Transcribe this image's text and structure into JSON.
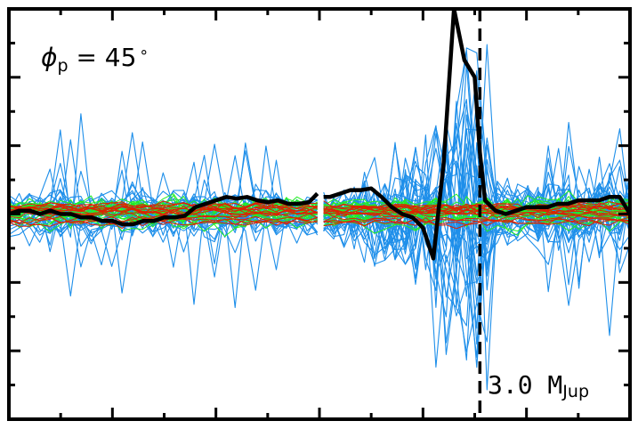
{
  "chart_data": {
    "type": "line",
    "title": "",
    "xlabel": "",
    "ylabel": "",
    "xlim": [
      0,
      60
    ],
    "ylim": [
      -6,
      6
    ],
    "grid": false,
    "legend": "none",
    "annotations": {
      "phi_symbol": "ϕ",
      "phi_sub": "p",
      "phi_eq": " = 45",
      "phi_deg": "∘",
      "mass_value": "3.0 M",
      "mass_sub": "Jup"
    },
    "vline_x": 45.5,
    "gap_x": [
      29.8,
      30.4
    ],
    "colors": {
      "blue": "#1e8fea",
      "green": "#22ee22",
      "red": "#dd2200",
      "mean": "#000000",
      "frame": "#000000"
    },
    "mean_series": {
      "name": "",
      "x": [
        0,
        1,
        2,
        3,
        4,
        5,
        6,
        7,
        8,
        9,
        10,
        11,
        12,
        13,
        14,
        15,
        16,
        17,
        18,
        19,
        20,
        21,
        22,
        23,
        24,
        25,
        26,
        27,
        28,
        29,
        29.8,
        30.4,
        31,
        32,
        33,
        34,
        35,
        36,
        37,
        38,
        39,
        40,
        41,
        42,
        43,
        44,
        45,
        45.5,
        46,
        47,
        48,
        49,
        50,
        51,
        52,
        53,
        54,
        55,
        56,
        57,
        58,
        59,
        60
      ],
      "y": [
        0.0,
        0.1,
        0.1,
        0.0,
        0.1,
        0.0,
        0.0,
        -0.1,
        -0.1,
        -0.2,
        -0.2,
        -0.3,
        -0.3,
        -0.2,
        -0.2,
        -0.1,
        -0.1,
        -0.05,
        0.2,
        0.3,
        0.4,
        0.5,
        0.45,
        0.5,
        0.4,
        0.35,
        0.4,
        0.3,
        0.3,
        0.35,
        0.6,
        0.5,
        0.5,
        0.6,
        0.7,
        0.7,
        0.75,
        0.5,
        0.2,
        0.0,
        -0.1,
        -0.4,
        -1.3,
        1.5,
        6.0,
        4.5,
        4.0,
        1.8,
        0.4,
        0.1,
        0.0,
        0.1,
        0.2,
        0.2,
        0.2,
        0.3,
        0.3,
        0.4,
        0.4,
        0.4,
        0.5,
        0.5,
        0.0
      ]
    },
    "x_ticks": [
      5,
      10,
      15,
      20,
      25,
      30,
      35,
      40,
      45,
      50,
      55
    ],
    "x_major_ticks": [
      10,
      20,
      30,
      40,
      50
    ],
    "y_ticks": [
      -5,
      -4,
      -3,
      -2,
      -1,
      0,
      1,
      2,
      3,
      4,
      5
    ],
    "y_major_ticks": [
      -4,
      -2,
      0,
      2,
      4
    ]
  }
}
